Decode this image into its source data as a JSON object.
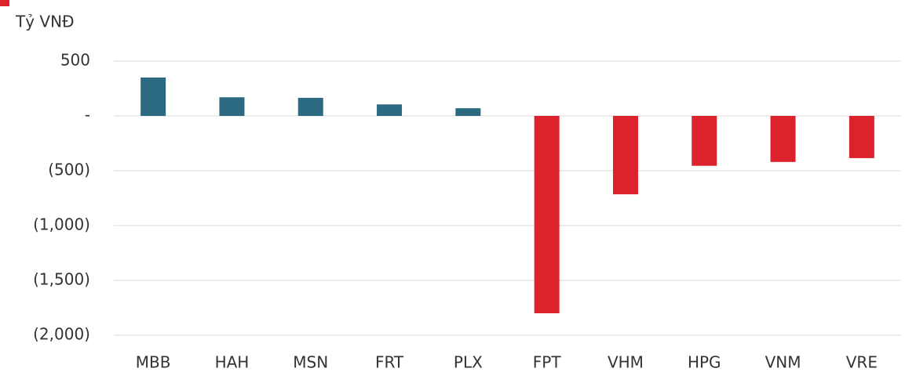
{
  "chart_data": {
    "type": "bar",
    "y_axis_label": "Tỷ VNĐ",
    "categories": [
      "MBB",
      "HAH",
      "MSN",
      "FRT",
      "PLX",
      "FPT",
      "VHM",
      "HPG",
      "VNM",
      "VRE"
    ],
    "values": [
      350,
      170,
      165,
      105,
      70,
      -1800,
      -715,
      -455,
      -420,
      -385
    ],
    "color_positive": "#2b6a80",
    "color_negative": "#dc222c",
    "ylim": [
      -2000,
      500
    ],
    "yticks": [
      500,
      {
        "value": 0,
        "label": "-"
      },
      {
        "value": -500,
        "label": "(500)"
      },
      {
        "value": -1000,
        "label": "(1,000)"
      },
      {
        "value": -1500,
        "label": "(1,500)"
      },
      {
        "value": -2000,
        "label": "(2,000)"
      }
    ],
    "grid": true
  }
}
